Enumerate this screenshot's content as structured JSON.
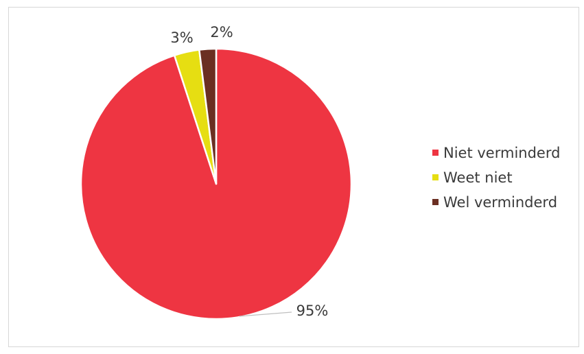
{
  "chart_data": {
    "type": "pie",
    "categories": [
      "Niet verminderd",
      "Weet niet",
      "Wel verminderd"
    ],
    "values": [
      95,
      3,
      2
    ],
    "data_labels": [
      "95%",
      "3%",
      "2%"
    ],
    "colors": [
      "#ee3542",
      "#e6de12",
      "#6b2f22"
    ],
    "legend_position": "right",
    "start_angle": "12 o'clock, clockwise"
  }
}
